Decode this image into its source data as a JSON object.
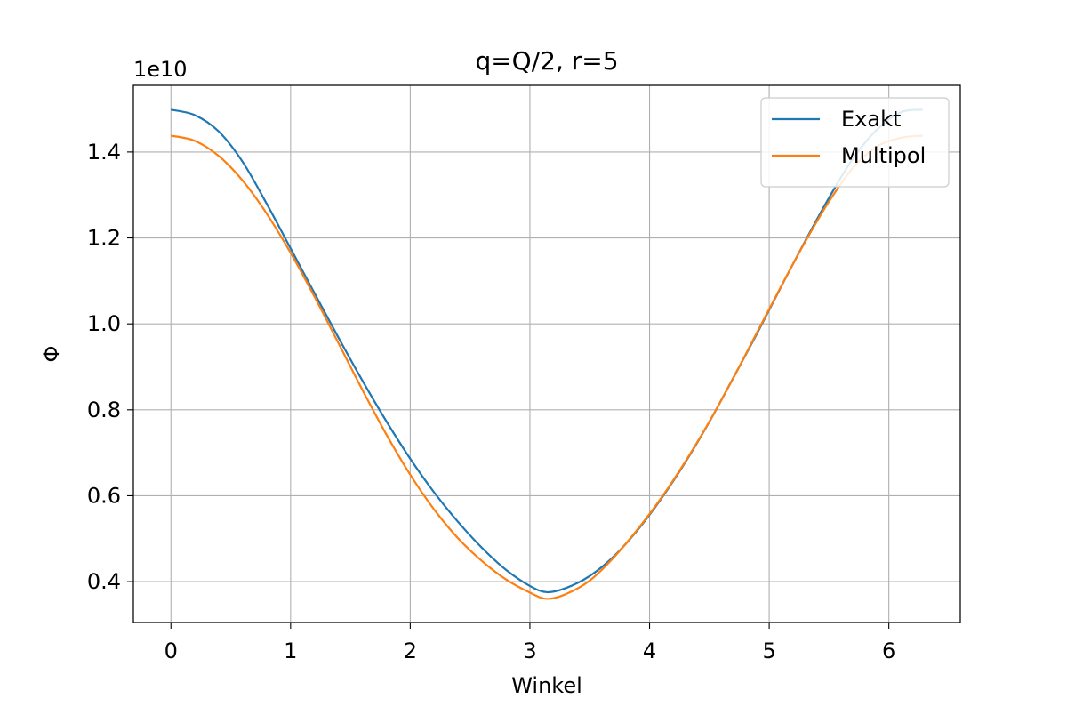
{
  "chart_data": {
    "type": "line",
    "title": "q=Q/2, r=5",
    "xlabel": "Winkel",
    "ylabel": "Φ",
    "y_offset_label": "1e10",
    "xlim": [
      -0.314,
      6.597
    ],
    "ylim": [
      0.305,
      1.555
    ],
    "x_ticks": [
      0,
      1,
      2,
      3,
      4,
      5,
      6
    ],
    "x_tick_labels": [
      "0",
      "1",
      "2",
      "3",
      "4",
      "5",
      "6"
    ],
    "y_ticks": [
      0.4,
      0.6,
      0.8,
      1.0,
      1.2,
      1.4
    ],
    "y_tick_labels": [
      "0.4",
      "0.6",
      "0.8",
      "1.0",
      "1.2",
      "1.4"
    ],
    "y_unit_multiplier": 10000000000.0,
    "grid": true,
    "legend_position": "top-right",
    "x_range": [
      0,
      6.2832
    ],
    "series": [
      {
        "name": "Exakt",
        "color": "#1f77b4",
        "x": [
          0,
          0.2,
          0.4,
          0.6,
          0.8,
          1.0,
          1.2,
          1.4,
          1.6,
          1.8,
          2.0,
          2.2,
          2.4,
          2.6,
          2.8,
          3.0,
          3.1416,
          3.3,
          3.5,
          3.7,
          3.9,
          4.1,
          4.3,
          4.5,
          4.7,
          4.9,
          5.1,
          5.3,
          5.5,
          5.7,
          5.9,
          6.1,
          6.2832
        ],
        "y": [
          1.4985,
          1.4858,
          1.4476,
          1.3766,
          1.2796,
          1.1756,
          1.0711,
          0.9679,
          0.868,
          0.7735,
          0.6861,
          0.6077,
          0.539,
          0.4786,
          0.4276,
          0.39,
          0.3755,
          0.385,
          0.4132,
          0.4586,
          0.5201,
          0.594,
          0.6784,
          0.7722,
          0.8745,
          0.9784,
          1.0866,
          1.1924,
          1.2934,
          1.3845,
          1.4518,
          1.4925,
          1.4985
        ]
      },
      {
        "name": "Multipol",
        "color": "#ff7f0e",
        "x": [
          0,
          0.2,
          0.4,
          0.6,
          0.8,
          1.0,
          1.2,
          1.4,
          1.6,
          1.8,
          2.0,
          2.2,
          2.4,
          2.6,
          2.8,
          3.0,
          3.1416,
          3.3,
          3.5,
          3.7,
          3.9,
          4.1,
          4.3,
          4.5,
          4.7,
          4.9,
          5.1,
          5.3,
          5.5,
          5.7,
          5.9,
          6.1,
          6.2832
        ],
        "y": [
          1.438,
          1.426,
          1.3906,
          1.3331,
          1.2566,
          1.1652,
          1.0629,
          0.955,
          0.8464,
          0.7428,
          0.6489,
          0.5678,
          0.5009,
          0.4479,
          0.4052,
          0.3745,
          0.36,
          0.371,
          0.4026,
          0.456,
          0.5218,
          0.5959,
          0.6801,
          0.7727,
          0.8741,
          0.981,
          1.0875,
          1.1905,
          1.2848,
          1.3631,
          1.4124,
          1.433,
          1.438
        ]
      }
    ]
  }
}
